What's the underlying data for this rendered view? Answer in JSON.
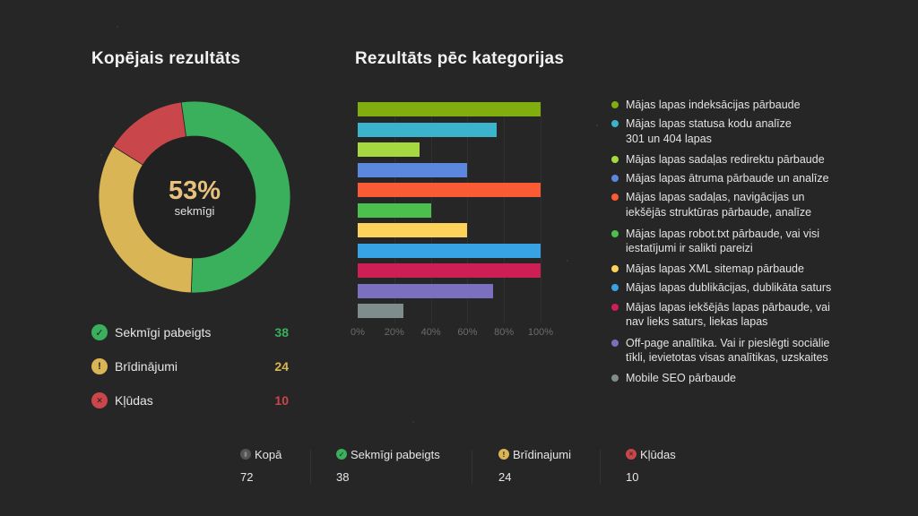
{
  "left_panel": {
    "title": "Kopējais rezultāts",
    "donut": {
      "percent_label": "53%",
      "sub_label": "sekmīgi"
    },
    "summary": [
      {
        "icon": "check-circle-icon",
        "label": "Sekmīgi pabeigts",
        "value": "38",
        "color": "#3aaf5c"
      },
      {
        "icon": "warning-circle-icon",
        "label": "Brīdinājumi",
        "value": "24",
        "color": "#d9b555"
      },
      {
        "icon": "error-circle-icon",
        "label": "Kļūdas",
        "value": "10",
        "color": "#c9464a"
      }
    ]
  },
  "right_panel": {
    "title": "Rezultāts pēc kategorijas"
  },
  "bottom_stats": [
    {
      "icon": "bar-chart-circle-icon",
      "label": "Kopā",
      "value": "72",
      "color": "#555555"
    },
    {
      "icon": "check-circle-icon",
      "label": "Sekmīgi pabeigts",
      "value": "38",
      "color": "#3aaf5c"
    },
    {
      "icon": "warning-circle-icon",
      "label": "Brīdinajumi",
      "value": "24",
      "color": "#d9b555"
    },
    {
      "icon": "error-circle-icon",
      "label": "Kļūdas",
      "value": "10",
      "color": "#c9464a"
    }
  ],
  "chart_data": [
    {
      "type": "pie",
      "title": "Kopējais rezultāts",
      "categories": [
        "Sekmīgi pabeigts",
        "Brīdinājumi",
        "Kļūdas"
      ],
      "values": [
        38,
        24,
        10
      ],
      "colors": [
        "#3aaf5c",
        "#d9b555",
        "#c9464a"
      ],
      "center_label": "53% sekmīgi",
      "donut": true
    },
    {
      "type": "bar",
      "orientation": "horizontal",
      "title": "Rezultāts pēc kategorijas",
      "categories": [
        "Mājas lapas indeksācijas pārbaude",
        "Mājas lapas statusa kodu analīze\n301 un 404 lapas",
        "Mājas lapas sadaļas redirektu pārbaude",
        "Mājas lapas ātruma pārbaude un analīze",
        "Mājas lapas sadaļas, navigācijas un\niekšējās struktūras pārbaude, analīze",
        "Mājas lapas robot.txt pārbaude, vai visi\niestatījumi ir salikti pareizi",
        "Mājas lapas XML sitemap pārbaude",
        "Mājas lapas dublikācijas, dublikāta saturs",
        "Mājas lapas iekšējās lapas pārbaude, vai\nnav lieks saturs, liekas lapas",
        "Off-page analītika. Vai ir pieslēgti sociālie\ntīkli, ievietotas visas analītikas, uzskaites",
        "Mobile SEO pārbaude"
      ],
      "values": [
        100,
        76,
        34,
        60,
        100,
        40,
        60,
        100,
        100,
        74,
        25
      ],
      "colors": [
        "#7fae0e",
        "#3bb3cc",
        "#a6d940",
        "#5b87de",
        "#fa5a34",
        "#4cbf4c",
        "#fdd25a",
        "#37a3e5",
        "#cd1f55",
        "#7b6fbf",
        "#7f8c8c"
      ],
      "xlabel": "",
      "ylabel": "",
      "xticks": [
        "0%",
        "20%",
        "40%",
        "60%",
        "80%",
        "100%"
      ],
      "xlim": [
        0,
        100
      ],
      "grid": true,
      "legend_position": "right"
    }
  ]
}
